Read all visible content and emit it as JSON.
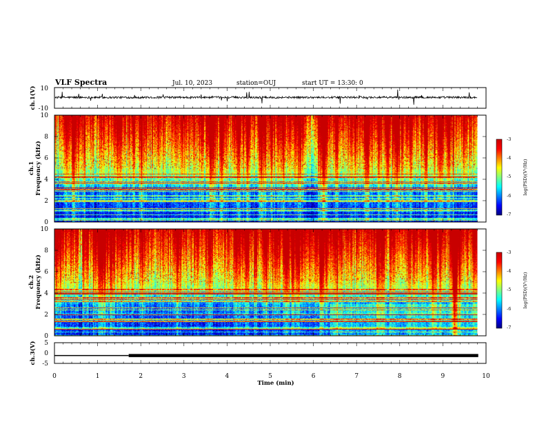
{
  "header": {
    "title": "VLF Spectra",
    "date": "Jul. 10, 2023",
    "station": "station=OUJ",
    "start_ut": "start UT = 13:30: 0"
  },
  "colors": {
    "spectrum_stops": [
      "#00007f",
      "#0000ff",
      "#0080ff",
      "#00ffff",
      "#80ff80",
      "#ffff00",
      "#ff8000",
      "#ff0000",
      "#c80000"
    ],
    "trace": "#000000"
  },
  "chart_data": [
    {
      "name": "ch1-waveform",
      "type": "line",
      "ylabel": "ch.1(V)",
      "ylim": [
        -10,
        10
      ],
      "yticks": [
        "10",
        "-10"
      ],
      "xlim": [
        0,
        10
      ],
      "baseline_v": 0.5,
      "noise_amplitude_v": 2
    },
    {
      "name": "ch1-spectrogram",
      "type": "heatmap",
      "ylabel_ch": "ch.1",
      "ylabel": "Frequency (kHz)",
      "ylim": [
        0,
        10
      ],
      "yticks": [
        "0",
        "2",
        "4",
        "6",
        "8",
        "10"
      ],
      "xlim": [
        0,
        10
      ],
      "data_xmax_min": 9.8,
      "colorbar": {
        "label": "log(PSD)(V²/Hz)",
        "range": [
          -7,
          -3
        ],
        "ticks": [
          "-3",
          "-4",
          "-5",
          "-6",
          "-7"
        ]
      }
    },
    {
      "name": "ch2-spectrogram",
      "type": "heatmap",
      "ylabel_ch": "ch.2",
      "ylabel": "Frequency (kHz)",
      "ylim": [
        0,
        10
      ],
      "yticks": [
        "0",
        "2",
        "4",
        "6",
        "8",
        "10"
      ],
      "xlim": [
        0,
        10
      ],
      "data_xmax_min": 9.8,
      "colorbar": {
        "label": "log(PSD)(V²/Hz)",
        "range": [
          -7,
          -3
        ],
        "ticks": [
          "-3",
          "-4",
          "-5",
          "-6",
          "-7"
        ]
      }
    },
    {
      "name": "ch3-waveform",
      "type": "line",
      "ylabel": "ch.3(V)",
      "ylim": [
        -5,
        5
      ],
      "yticks": [
        "5",
        "0",
        "-5"
      ],
      "xlim": [
        0,
        10
      ],
      "xlabel": "Time (min)",
      "xticks": [
        "0",
        "1",
        "2",
        "3",
        "4",
        "5",
        "6",
        "7",
        "8",
        "9",
        "10"
      ],
      "segments": [
        {
          "x": [
            0,
            1.72
          ],
          "y": -1.2,
          "width": "thin"
        },
        {
          "x": [
            1.72,
            9.82
          ],
          "y": -1.2,
          "width": "thick"
        }
      ]
    }
  ]
}
